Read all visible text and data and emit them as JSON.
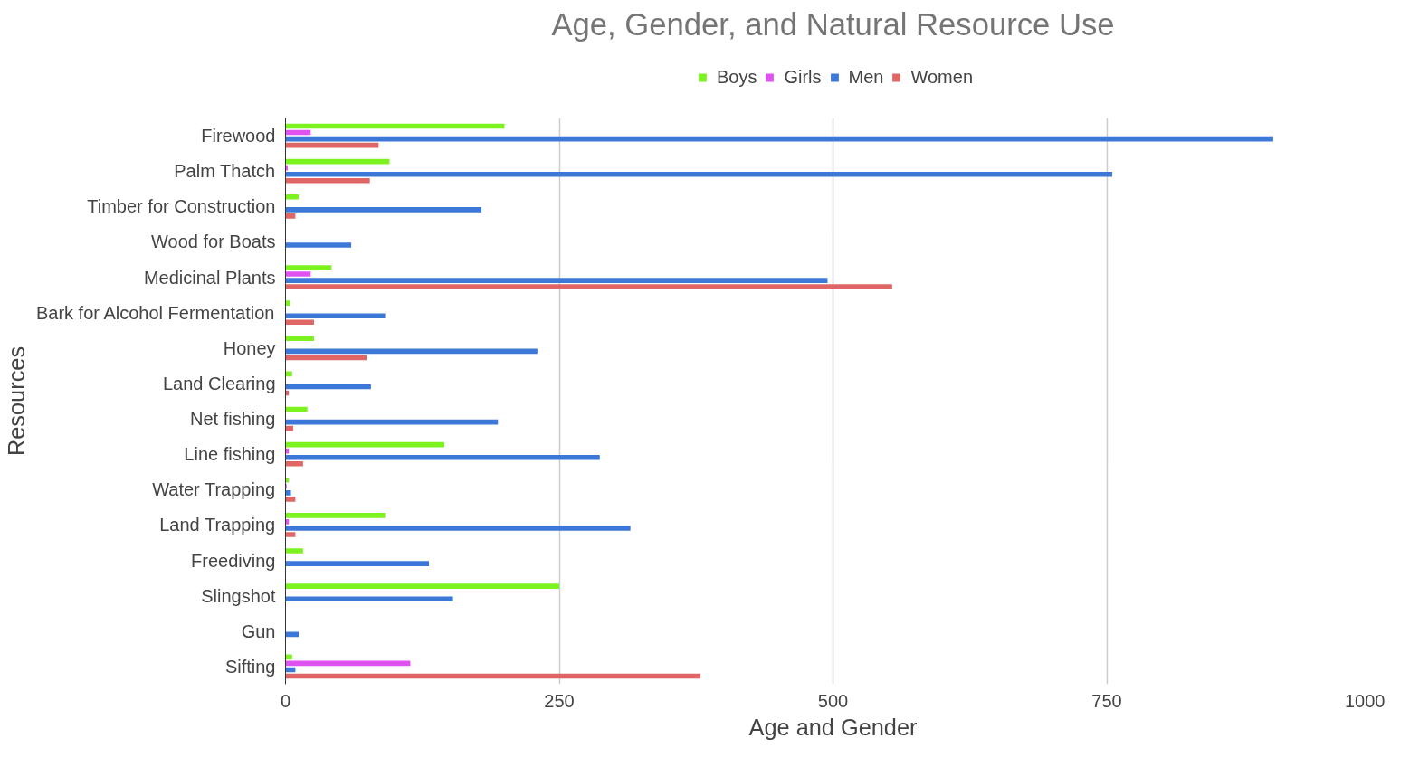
{
  "chart_data": {
    "type": "bar",
    "orientation": "horizontal",
    "title": "Age, Gender, and Natural Resource Use",
    "xlabel": "Age and Gender",
    "ylabel": "Resources",
    "categories": [
      "Firewood",
      "Palm Thatch",
      "Timber for Construction",
      "Wood for Boats",
      "Medicinal Plants",
      "Bark for Alcohol Fermentation",
      "Honey",
      "Land Clearing",
      "Net fishing",
      "Line fishing",
      "Water Trapping",
      "Land Trapping",
      "Freediving",
      "Slingshot",
      "Gun",
      "Sifting"
    ],
    "series": [
      {
        "name": "Boys",
        "color": "#7cf21e",
        "values": [
          200,
          95,
          12,
          null,
          42,
          4,
          26,
          6,
          20,
          145,
          3,
          91,
          16,
          250,
          null,
          6
        ]
      },
      {
        "name": "Girls",
        "color": "#e052f0",
        "values": [
          23,
          2,
          null,
          null,
          23,
          null,
          null,
          null,
          null,
          3,
          1,
          3,
          null,
          null,
          null,
          114
        ]
      },
      {
        "name": "Men",
        "color": "#3c78d8",
        "values": [
          902,
          755,
          179,
          60,
          495,
          91,
          230,
          78,
          194,
          287,
          5,
          315,
          131,
          153,
          12,
          9
        ]
      },
      {
        "name": "Women",
        "color": "#e06666",
        "values": [
          85,
          77,
          9,
          null,
          554,
          26,
          74,
          3,
          7,
          16,
          9,
          9,
          null,
          null,
          null,
          379
        ]
      }
    ],
    "xlim": [
      0,
      1000
    ],
    "xticks": [
      0,
      250,
      500,
      750,
      1000
    ],
    "grid": "x",
    "legend": "top"
  }
}
